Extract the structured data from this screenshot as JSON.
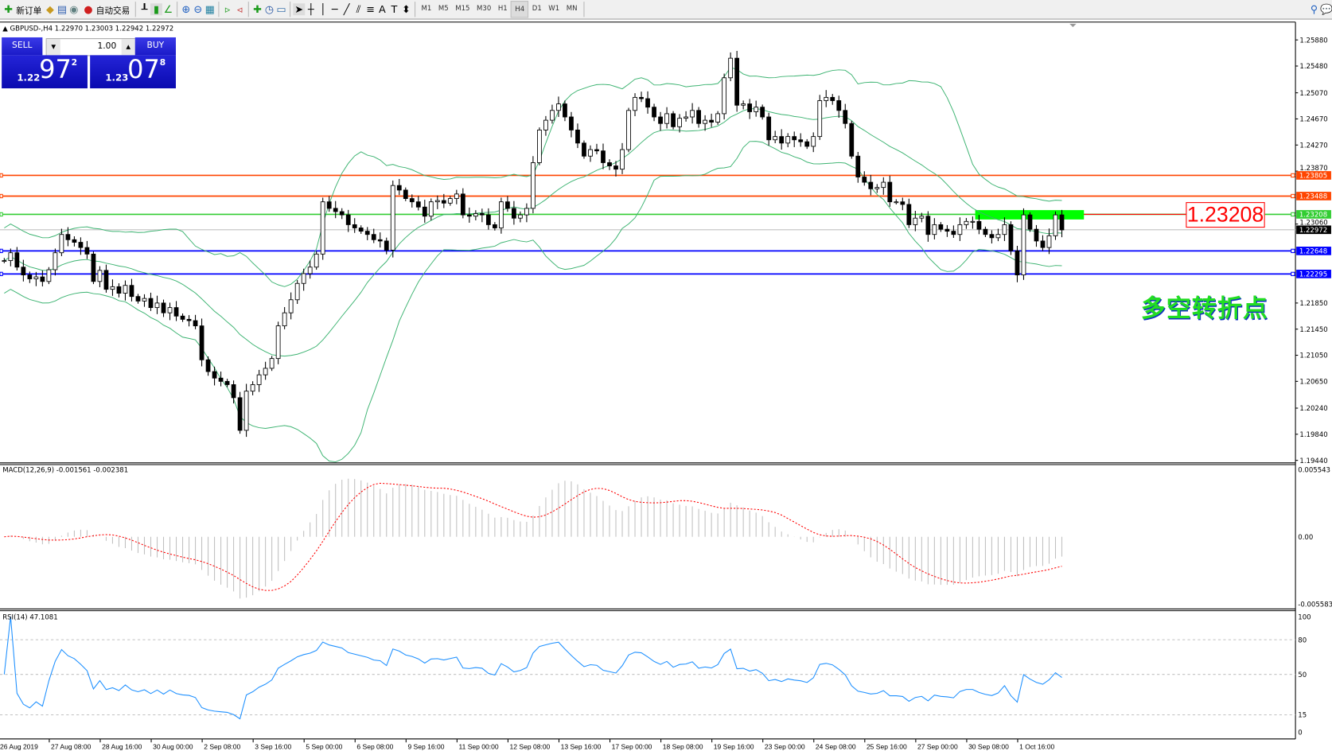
{
  "toolbar": {
    "new_order": "新订单",
    "auto_trading": "自动交易",
    "timeframes": [
      "M1",
      "M5",
      "M15",
      "M30",
      "H1",
      "H4",
      "D1",
      "W1",
      "MN"
    ],
    "active_timeframe": "H4"
  },
  "chart_info": {
    "symbol_line": "GBPUSD-,H4  1.22970 1.23003 1.22942 1.22972",
    "macd_label": "MACD(12,26,9) -0.001561 -0.002381",
    "rsi_label": "RSI(14) 47.1081"
  },
  "trade_panel": {
    "sell_label": "SELL",
    "buy_label": "BUY",
    "lot": "1.00",
    "bid_prefix": "1.22",
    "bid_big": "97",
    "bid_sup": "2",
    "ask_prefix": "1.23",
    "ask_big": "07",
    "ask_sup": "8"
  },
  "annotation": {
    "level_tag": "1.23208",
    "caption": "多空转折点"
  },
  "colors": {
    "resistance": "#ff4500",
    "pivot": "#32cd32",
    "support": "#0000ff",
    "bid": "#c0c0c0",
    "bands": "#3cb371",
    "macd_signal": "#ff0000",
    "rsi": "#1e90ff",
    "highlight": "#00ff00"
  },
  "chart_data": {
    "type": "candlestick",
    "symbol": "GBPUSD-",
    "timeframe": "H4",
    "price_ticks": [
      "1.25880",
      "1.25480",
      "1.25070",
      "1.24670",
      "1.24270",
      "1.23870",
      "1.23060",
      "1.21850",
      "1.21450",
      "1.21050",
      "1.20650",
      "1.20240",
      "1.19840",
      "1.19440"
    ],
    "ylim": [
      1.1944,
      1.2605
    ],
    "time_labels": [
      "26 Aug 2019",
      "27 Aug 08:00",
      "28 Aug 16:00",
      "30 Aug 00:00",
      "2 Sep 08:00",
      "3 Sep 16:00",
      "5 Sep 00:00",
      "6 Sep 08:00",
      "9 Sep 16:00",
      "11 Sep 00:00",
      "12 Sep 08:00",
      "13 Sep 16:00",
      "17 Sep 00:00",
      "18 Sep 08:00",
      "19 Sep 16:00",
      "23 Sep 00:00",
      "24 Sep 08:00",
      "25 Sep 16:00",
      "27 Sep 00:00",
      "30 Sep 08:00",
      "1 Oct 16:00"
    ],
    "closes": [
      1.225,
      1.2262,
      1.224,
      1.2228,
      1.2222,
      1.2225,
      1.2218,
      1.2236,
      1.2262,
      1.229,
      1.2282,
      1.2278,
      1.227,
      1.226,
      1.2218,
      1.2235,
      1.2206,
      1.221,
      1.22,
      1.2212,
      1.2195,
      1.2188,
      1.2192,
      1.2178,
      1.2185,
      1.217,
      1.2178,
      1.2165,
      1.216,
      1.2158,
      1.215,
      1.2098,
      1.208,
      1.207,
      1.2065,
      1.206,
      1.204,
      1.199,
      1.205,
      1.206,
      1.2075,
      1.2085,
      1.21,
      1.215,
      1.217,
      1.219,
      1.2215,
      1.223,
      1.224,
      1.226,
      1.234,
      1.233,
      1.2325,
      1.232,
      1.2305,
      1.23,
      1.2295,
      1.229,
      1.2282,
      1.228,
      1.2266,
      1.2365,
      1.2358,
      1.2345,
      1.234,
      1.2332,
      1.2318,
      1.234,
      1.2342,
      1.2338,
      1.2345,
      1.2352,
      1.232,
      1.2318,
      1.2322,
      1.232,
      1.2305,
      1.23,
      1.234,
      1.233,
      1.2315,
      1.232,
      1.233,
      1.24,
      1.245,
      1.2465,
      1.248,
      1.249,
      1.247,
      1.245,
      1.243,
      1.241,
      1.242,
      1.2418,
      1.24,
      1.2395,
      1.239,
      1.242,
      1.248,
      1.25,
      1.2498,
      1.2485,
      1.247,
      1.246,
      1.2475,
      1.2455,
      1.2468,
      1.247,
      1.248,
      1.246,
      1.2465,
      1.2462,
      1.2475,
      1.253,
      1.256,
      1.2488,
      1.249,
      1.2478,
      1.2485,
      1.247,
      1.2435,
      1.244,
      1.243,
      1.244,
      1.2435,
      1.2432,
      1.2425,
      1.244,
      1.2495,
      1.25,
      1.2495,
      1.248,
      1.246,
      1.241,
      1.2378,
      1.237,
      1.236,
      1.2362,
      1.237,
      1.234,
      1.234,
      1.2336,
      1.2305,
      1.2315,
      1.2318,
      1.229,
      1.2305,
      1.2298,
      1.2295,
      1.229,
      1.2305,
      1.231,
      1.231,
      1.2298,
      1.229,
      1.2285,
      1.229,
      1.2305,
      1.2265,
      1.2228,
      1.232,
      1.2298,
      1.228,
      1.227,
      1.2288,
      1.232,
      1.2297
    ],
    "horizontal_levels": [
      {
        "price": "1.23805",
        "kind": "resistance"
      },
      {
        "price": "1.23488",
        "kind": "resistance"
      },
      {
        "price": "1.23208",
        "kind": "pivot"
      },
      {
        "price": "1.22972",
        "kind": "bid"
      },
      {
        "price": "1.22648",
        "kind": "support"
      },
      {
        "price": "1.22295",
        "kind": "support"
      }
    ],
    "indicators": {
      "bollinger": {
        "period": 20,
        "deviation": 2
      },
      "macd": {
        "fast": 12,
        "slow": 26,
        "signal": 9,
        "ticks": [
          "0.005543",
          "0.00",
          "-0.005583"
        ],
        "ylim": [
          -0.005583,
          0.005543
        ]
      },
      "rsi": {
        "period": 14,
        "ticks": [
          "100",
          "80",
          "50",
          "15",
          "0"
        ],
        "levels": [
          80,
          50,
          15
        ]
      }
    }
  }
}
